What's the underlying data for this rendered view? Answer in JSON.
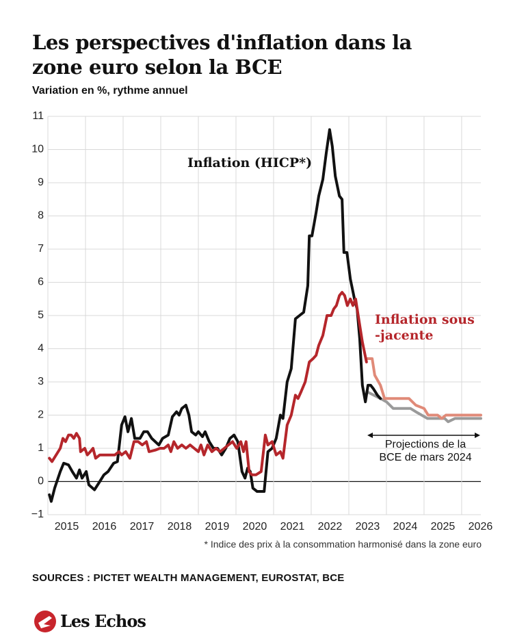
{
  "chart_data": {
    "type": "line",
    "title": "Les perspectives d'inflation dans la zone euro selon la BCE",
    "subtitle": "Variation en %, rythme annuel",
    "xlim": [
      2015,
      2026.51
    ],
    "xticks": [
      2015,
      2016,
      2017,
      2018,
      2019,
      2020,
      2021,
      2022,
      2023,
      2024,
      2025,
      2026
    ],
    "ylim": [
      -1,
      11
    ],
    "yticks": [
      {
        "value": -1,
        "label": "−1"
      },
      0,
      1,
      2,
      3,
      4,
      5,
      6,
      7,
      8,
      9,
      10,
      11
    ],
    "grid": true,
    "series": [
      {
        "name": "Inflation (HICP*)",
        "color": "#111111",
        "x": [
          2015.04,
          2015.09,
          2015.18,
          2015.33,
          2015.42,
          2015.55,
          2015.65,
          2015.76,
          2015.84,
          2015.91,
          2016.02,
          2016.09,
          2016.24,
          2016.38,
          2016.49,
          2016.6,
          2016.75,
          2016.85,
          2016.96,
          2017.05,
          2017.13,
          2017.22,
          2017.31,
          2017.45,
          2017.55,
          2017.65,
          2017.76,
          2017.95,
          2018.05,
          2018.2,
          2018.31,
          2018.42,
          2018.49,
          2018.56,
          2018.67,
          2018.75,
          2018.82,
          2018.93,
          2019.0,
          2019.11,
          2019.18,
          2019.29,
          2019.4,
          2019.51,
          2019.62,
          2019.73,
          2019.84,
          2019.95,
          2020.05,
          2020.16,
          2020.24,
          2020.31,
          2020.38,
          2020.45,
          2020.56,
          2020.75,
          2020.85,
          2020.96,
          2021.07,
          2021.18,
          2021.25,
          2021.36,
          2021.47,
          2021.58,
          2021.69,
          2021.8,
          2021.91,
          2021.95,
          2022.02,
          2022.13,
          2022.2,
          2022.31,
          2022.4,
          2022.49,
          2022.56,
          2022.64,
          2022.75,
          2022.82,
          2022.87,
          2022.95,
          2023.04,
          2023.15,
          2023.22,
          2023.29,
          2023.36,
          2023.44,
          2023.51,
          2023.58,
          2023.65,
          2023.76,
          2023.84
        ],
        "values": [
          -0.4,
          -0.6,
          -0.2,
          0.3,
          0.55,
          0.5,
          0.3,
          0.1,
          0.35,
          0.1,
          0.3,
          -0.1,
          -0.25,
          0.0,
          0.2,
          0.3,
          0.55,
          0.6,
          1.7,
          1.95,
          1.5,
          1.9,
          1.3,
          1.3,
          1.5,
          1.5,
          1.3,
          1.1,
          1.3,
          1.4,
          1.95,
          2.1,
          2.0,
          2.2,
          2.3,
          2.0,
          1.5,
          1.4,
          1.5,
          1.35,
          1.5,
          1.2,
          1.0,
          1.0,
          0.8,
          1.0,
          1.3,
          1.4,
          1.2,
          0.3,
          0.1,
          0.4,
          0.3,
          -0.2,
          -0.3,
          -0.3,
          0.9,
          1.0,
          1.3,
          2.0,
          1.9,
          3.0,
          3.4,
          4.9,
          5.0,
          5.1,
          5.9,
          7.4,
          7.4,
          8.1,
          8.6,
          9.1,
          9.9,
          10.6,
          10.1,
          9.2,
          8.6,
          8.5,
          6.9,
          6.9,
          6.1,
          5.5,
          5.2,
          4.3,
          2.9,
          2.4,
          2.9,
          2.9,
          2.8,
          2.6,
          2.5
        ]
      },
      {
        "name": "Inflation sous -jacente",
        "color": "#b5262b",
        "x": [
          2015.04,
          2015.11,
          2015.22,
          2015.33,
          2015.4,
          2015.47,
          2015.55,
          2015.62,
          2015.69,
          2015.76,
          2015.84,
          2015.87,
          2015.98,
          2016.05,
          2016.13,
          2016.2,
          2016.27,
          2016.38,
          2016.49,
          2016.6,
          2016.78,
          2016.89,
          2016.96,
          2017.07,
          2017.18,
          2017.29,
          2017.4,
          2017.51,
          2017.62,
          2017.69,
          2017.87,
          2017.98,
          2018.09,
          2018.2,
          2018.27,
          2018.35,
          2018.45,
          2018.56,
          2018.67,
          2018.78,
          2018.89,
          2019.0,
          2019.07,
          2019.15,
          2019.25,
          2019.36,
          2019.47,
          2019.58,
          2019.69,
          2019.8,
          2019.91,
          2020.02,
          2020.13,
          2020.2,
          2020.27,
          2020.35,
          2020.42,
          2020.53,
          2020.67,
          2020.78,
          2020.85,
          2020.96,
          2021.07,
          2021.18,
          2021.25,
          2021.36,
          2021.47,
          2021.58,
          2021.65,
          2021.73,
          2021.84,
          2021.95,
          2022.05,
          2022.13,
          2022.2,
          2022.31,
          2022.42,
          2022.53,
          2022.6,
          2022.67,
          2022.75,
          2022.82,
          2022.89,
          2022.96,
          2023.04,
          2023.11,
          2023.18,
          2023.25,
          2023.36,
          2023.47
        ],
        "values": [
          0.7,
          0.6,
          0.8,
          1.0,
          1.3,
          1.2,
          1.4,
          1.4,
          1.3,
          1.45,
          1.3,
          0.9,
          1.0,
          0.8,
          0.9,
          1.0,
          0.7,
          0.8,
          0.8,
          0.8,
          0.8,
          0.9,
          0.8,
          0.9,
          0.7,
          1.2,
          1.2,
          1.1,
          1.2,
          0.9,
          0.95,
          1.0,
          1.0,
          1.1,
          0.9,
          1.2,
          1.0,
          1.1,
          1.0,
          1.1,
          1.0,
          0.9,
          1.1,
          0.8,
          1.1,
          0.9,
          1.0,
          0.9,
          1.0,
          1.1,
          1.2,
          1.0,
          1.2,
          0.9,
          1.2,
          0.3,
          0.2,
          0.2,
          0.3,
          1.4,
          1.1,
          1.2,
          0.8,
          0.9,
          0.7,
          1.7,
          2.0,
          2.6,
          2.5,
          2.7,
          3.0,
          3.6,
          3.7,
          3.8,
          4.1,
          4.4,
          5.0,
          5.0,
          5.2,
          5.3,
          5.6,
          5.7,
          5.6,
          5.3,
          5.5,
          5.3,
          5.5,
          5.0,
          4.2,
          3.6
        ]
      },
      {
        "color": "#9a9a9a",
        "x": [
          2023.49,
          2023.84,
          2024.0,
          2024.18,
          2024.64,
          2024.78,
          2025.09,
          2025.55,
          2025.64,
          2025.82,
          2026.51
        ],
        "values": [
          2.7,
          2.5,
          2.4,
          2.2,
          2.2,
          2.1,
          1.9,
          1.9,
          1.8,
          1.9,
          1.9
        ]
      },
      {
        "color": "#e08a78",
        "x": [
          2023.47,
          2023.62,
          2023.69,
          2023.84,
          2023.95,
          2024.18,
          2024.6,
          2024.78,
          2025.0,
          2025.11,
          2025.36,
          2025.47,
          2025.58,
          2026.51
        ],
        "values": [
          3.7,
          3.7,
          3.2,
          2.9,
          2.5,
          2.5,
          2.5,
          2.3,
          2.2,
          2.0,
          2.0,
          1.9,
          2.0,
          2.0
        ]
      }
    ],
    "annotations": [
      "Projections de la BCE de mars 2024"
    ],
    "footnote": "* Indice des prix à la consommation harmonisé dans la zone euro",
    "source": "SOURCES : PICTET WEALTH MANAGEMENT, EUROSTAT, BCE",
    "logo": "Les Echos"
  }
}
